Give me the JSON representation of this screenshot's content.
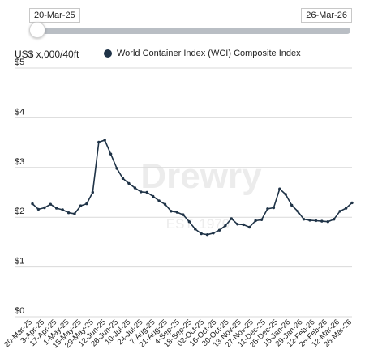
{
  "range_slider": {
    "start_label": "20-Mar-25",
    "end_label": "26-Mar-26"
  },
  "watermark": {
    "brand": "Drewry",
    "tagline": "EST. 1970"
  },
  "colors": {
    "series": "#1f3347",
    "grid": "#d9d9d9",
    "track": "#b9bec4"
  },
  "chart_data": {
    "type": "line",
    "ylabel": "US$ x,000/40ft",
    "ylim": [
      0,
      5
    ],
    "yticks": [
      0,
      1,
      2,
      3,
      4,
      5
    ],
    "ytick_labels": [
      "$0",
      "$1",
      "$2",
      "$3",
      "$4",
      "$5"
    ],
    "grid": "horizontal",
    "legend_position": "top",
    "x_tick_labels": [
      "20-Mar-25",
      "3-Apr-25",
      "17-Apr-25",
      "1-May-25",
      "15-May-25",
      "29-May-25",
      "12-Jun-25",
      "26-Jun-25",
      "10-Jul-25",
      "24-Jul-25",
      "7-Aug-25",
      "21-Aug-25",
      "4-Sep-25",
      "18-Sep-25",
      "02-Oct-25",
      "16-Oct-25",
      "30-Oct-25",
      "13-Nov-25",
      "27-Nov-25",
      "11-Dec-25",
      "25-Dec-25",
      "15-Jan-26",
      "29-Jan-26",
      "12-Feb-26",
      "26-Feb-26",
      "12-Mar-26",
      "26-Mar-26"
    ],
    "series": [
      {
        "name": "World Container Index (WCI) Composite Index",
        "x": [
          "20-Mar-25",
          "27-Mar-25",
          "3-Apr-25",
          "10-Apr-25",
          "17-Apr-25",
          "24-Apr-25",
          "1-May-25",
          "8-May-25",
          "15-May-25",
          "22-May-25",
          "29-May-25",
          "5-Jun-25",
          "12-Jun-25",
          "19-Jun-25",
          "26-Jun-25",
          "3-Jul-25",
          "10-Jul-25",
          "17-Jul-25",
          "24-Jul-25",
          "31-Jul-25",
          "7-Aug-25",
          "14-Aug-25",
          "21-Aug-25",
          "28-Aug-25",
          "4-Sep-25",
          "11-Sep-25",
          "18-Sep-25",
          "25-Sep-25",
          "02-Oct-25",
          "9-Oct-25",
          "16-Oct-25",
          "23-Oct-25",
          "30-Oct-25",
          "6-Nov-25",
          "13-Nov-25",
          "20-Nov-25",
          "27-Nov-25",
          "4-Dec-25",
          "11-Dec-25",
          "18-Dec-25",
          "25-Dec-25",
          "1-Jan-26",
          "8-Jan-26",
          "15-Jan-26",
          "22-Jan-26",
          "29-Jan-26",
          "5-Feb-26",
          "12-Feb-26",
          "19-Feb-26",
          "26-Feb-26",
          "5-Mar-26",
          "12-Mar-26",
          "19-Mar-26",
          "26-Mar-26"
        ],
        "values": [
          2.27,
          2.16,
          2.19,
          2.26,
          2.18,
          2.15,
          2.09,
          2.07,
          2.23,
          2.27,
          2.5,
          3.51,
          3.55,
          3.27,
          2.98,
          2.78,
          2.68,
          2.59,
          2.51,
          2.5,
          2.42,
          2.33,
          2.26,
          2.12,
          2.1,
          2.05,
          1.91,
          1.76,
          1.67,
          1.65,
          1.68,
          1.74,
          1.83,
          1.97,
          1.86,
          1.85,
          1.8,
          1.93,
          1.95,
          2.17,
          2.19,
          2.57,
          2.46,
          2.24,
          2.12,
          1.96,
          1.94,
          1.93,
          1.92,
          1.91,
          1.96,
          2.12,
          2.18,
          2.29
        ]
      }
    ]
  }
}
